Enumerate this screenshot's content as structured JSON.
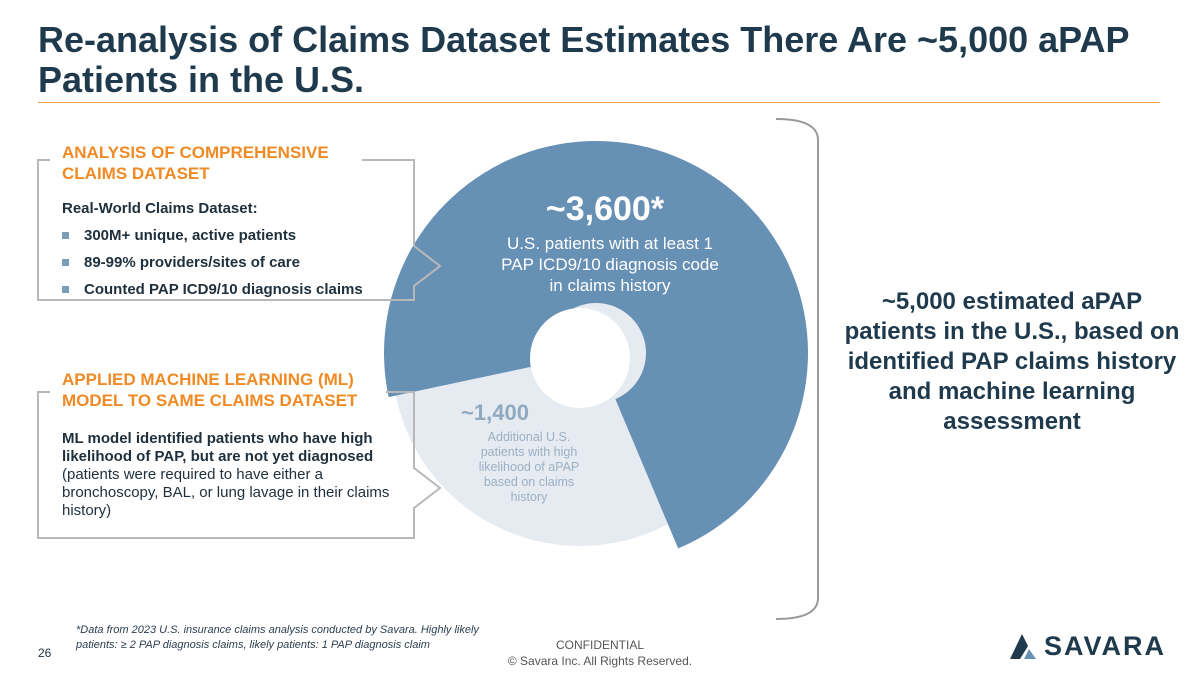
{
  "title": "Re-analysis of Claims Dataset Estimates There Are ~5,000 aPAP Patients in the U.S.",
  "analysis_box": {
    "heading": "ANALYSIS OF COMPREHENSIVE CLAIMS DATASET",
    "subheading": "Real-World Claims Dataset:",
    "bullets": [
      "300M+ unique, active patients",
      "89-99% providers/sites of care",
      "Counted PAP ICD9/10 diagnosis claims"
    ]
  },
  "ml_box": {
    "heading": "APPLIED MACHINE LEARNING (ML) MODEL TO SAME CLAIMS DATASET",
    "bold_text": "ML model identified patients who have high likelihood of PAP, but are not yet diagnosed",
    "normal_text": "(patients were required to have either a bronchoscopy, BAL, or lung lavage in their claims history)"
  },
  "donut": {
    "segments": [
      {
        "value_label": "~3,600*",
        "value": 3600,
        "description": "U.S. patients with at least 1 PAP ICD9/10 diagnosis code in claims history",
        "color": "#6790b5"
      },
      {
        "value_label": "~1,400",
        "value": 1400,
        "description": "Additional U.S. patients with high likelihood of aPAP based on claims history",
        "color": "#e6ebf1"
      }
    ]
  },
  "summary": "~5,000 estimated aPAP patients in the U.S., based on identified PAP claims history and machine learning assessment",
  "footnote": "*Data from 2023 U.S. insurance claims analysis conducted by Savara. Highly likely patients: ≥ 2 PAP diagnosis claims, likely patients: 1 PAP diagnosis claim",
  "page_number": "26",
  "confidential": {
    "line1": "CONFIDENTIAL",
    "line2": "© Savara Inc. All Rights Reserved."
  },
  "logo": {
    "text": "SAVARA",
    "color": "#1f3a4d",
    "accent": "#6790b5"
  },
  "colors": {
    "title": "#1f3a4d",
    "accent_orange": "#f08a24",
    "rule": "#e8a23c",
    "frame": "#b8b8b8"
  }
}
